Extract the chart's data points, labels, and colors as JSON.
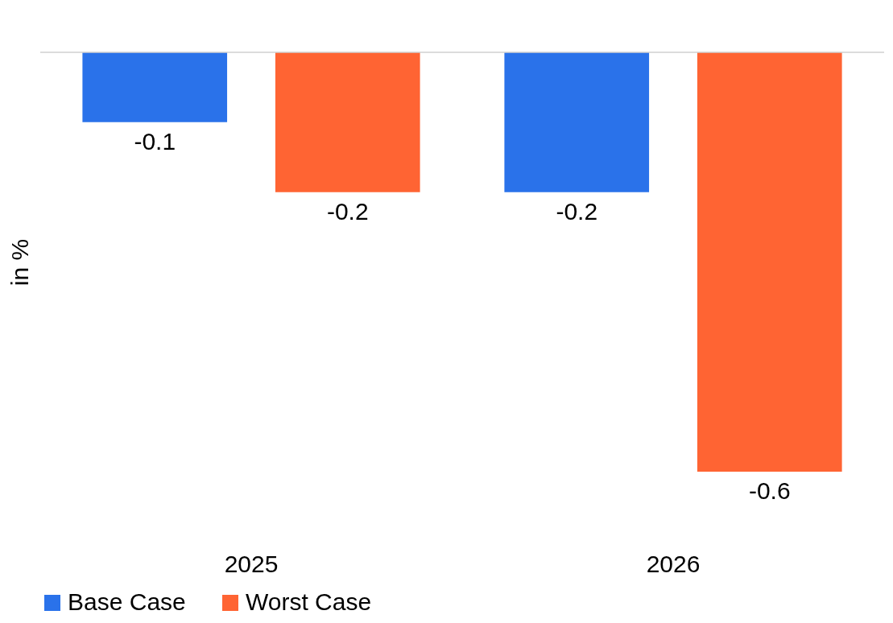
{
  "chart_data": {
    "type": "bar",
    "ylabel": "in %",
    "categories": [
      "2025",
      "2026"
    ],
    "series": [
      {
        "name": "Base Case",
        "color": "#2a72ea",
        "values": [
          -0.1,
          -0.2
        ]
      },
      {
        "name": "Worst Case",
        "color": "#ff6433",
        "values": [
          -0.2,
          -0.6
        ]
      }
    ],
    "data_labels": true,
    "legend": "bottom",
    "grid": false
  }
}
